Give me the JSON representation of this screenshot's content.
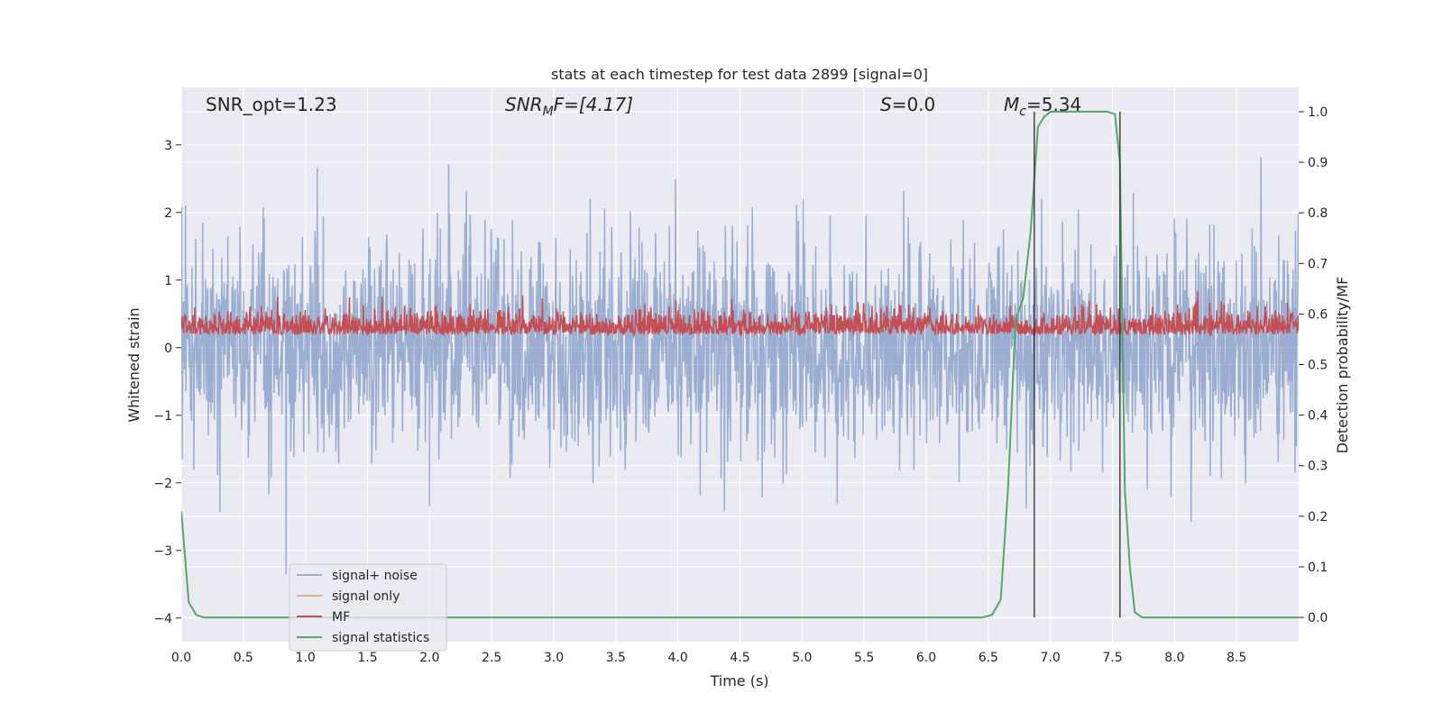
{
  "chart_data": {
    "type": "line",
    "title": "stats at each timestep for test data 2899 [signal=0]",
    "xlabel": "Time (s)",
    "ylabel": "Whitened strain",
    "y2label": "Detection probability/MF",
    "xlim": [
      0,
      9.0
    ],
    "ylim": [
      -4.35,
      3.85
    ],
    "y2lim": [
      -0.048,
      1.048
    ],
    "xticks": [
      0.0,
      0.5,
      1.0,
      1.5,
      2.0,
      2.5,
      3.0,
      3.5,
      4.0,
      4.5,
      5.0,
      5.5,
      6.0,
      6.5,
      7.0,
      7.5,
      8.0,
      8.5
    ],
    "xtick_labels": [
      "0.0",
      "0.5",
      "1.0",
      "1.5",
      "2.0",
      "2.5",
      "3.0",
      "3.5",
      "4.0",
      "4.5",
      "5.0",
      "5.5",
      "6.0",
      "6.5",
      "7.0",
      "7.5",
      "8.0",
      "8.5"
    ],
    "yticks": [
      -4,
      -3,
      -2,
      -1,
      0,
      1,
      2,
      3
    ],
    "ytick_labels": [
      "−4",
      "−3",
      "−2",
      "−1",
      "0",
      "1",
      "2",
      "3"
    ],
    "y2ticks": [
      0.0,
      0.1,
      0.2,
      0.3,
      0.4,
      0.5,
      0.6,
      0.7,
      0.8,
      0.9,
      1.0
    ],
    "y2tick_labels": [
      "0.0",
      "0.1",
      "0.2",
      "0.3",
      "0.4",
      "0.5",
      "0.6",
      "0.7",
      "0.8",
      "0.9",
      "1.0"
    ],
    "grid": true,
    "legend_position": "lower-left",
    "annotations": {
      "snr_opt": "SNR_opt=1.23",
      "snr_mf_main": "SNR",
      "snr_mf_sub": "M",
      "snr_mf_rest": "F=[4.17]",
      "s_main": "S",
      "s_rest": "=0.0",
      "mc_main": "M",
      "mc_sub": "c",
      "mc_rest": "=5.34"
    },
    "vertical_lines": [
      6.87,
      7.56
    ],
    "series": [
      {
        "name": "signal+ noise",
        "color": "#4c72b0",
        "style": "noise",
        "num_samples": 2400,
        "approx_std": 0.8,
        "approx_max": 3.5,
        "approx_min": -3.35
      },
      {
        "name": "signal only",
        "color": "#dd8452",
        "style": "flat",
        "x": [],
        "y": []
      },
      {
        "name": "MF",
        "color": "#c44e52",
        "style": "noise",
        "num_samples": 2400,
        "approx_mean": 0.27,
        "approx_max": 1.0,
        "approx_min": 0.02
      },
      {
        "name": "signal statistics",
        "color": "#55a868",
        "axis": "y2",
        "x": [
          0.0,
          0.06,
          0.12,
          0.18,
          0.25,
          0.5,
          1.0,
          2.0,
          3.0,
          4.0,
          5.0,
          6.0,
          6.45,
          6.53,
          6.6,
          6.66,
          6.72,
          6.78,
          6.84,
          6.9,
          6.95,
          7.0,
          7.05,
          7.1,
          7.2,
          7.3,
          7.4,
          7.46,
          7.52,
          7.56,
          7.6,
          7.64,
          7.68,
          7.74,
          7.8,
          8.0,
          8.5,
          9.0
        ],
        "y": [
          0.21,
          0.03,
          0.005,
          0.0,
          0.0,
          0.0,
          0.0,
          0.0,
          0.0,
          0.0,
          0.0,
          0.0,
          0.0,
          0.005,
          0.035,
          0.26,
          0.59,
          0.63,
          0.76,
          0.97,
          0.99,
          1.0,
          1.0,
          1.0,
          1.0,
          1.0,
          1.0,
          1.0,
          0.995,
          0.9,
          0.25,
          0.1,
          0.01,
          0.0,
          0.0,
          0.0,
          0.0,
          0.0
        ]
      }
    ]
  }
}
